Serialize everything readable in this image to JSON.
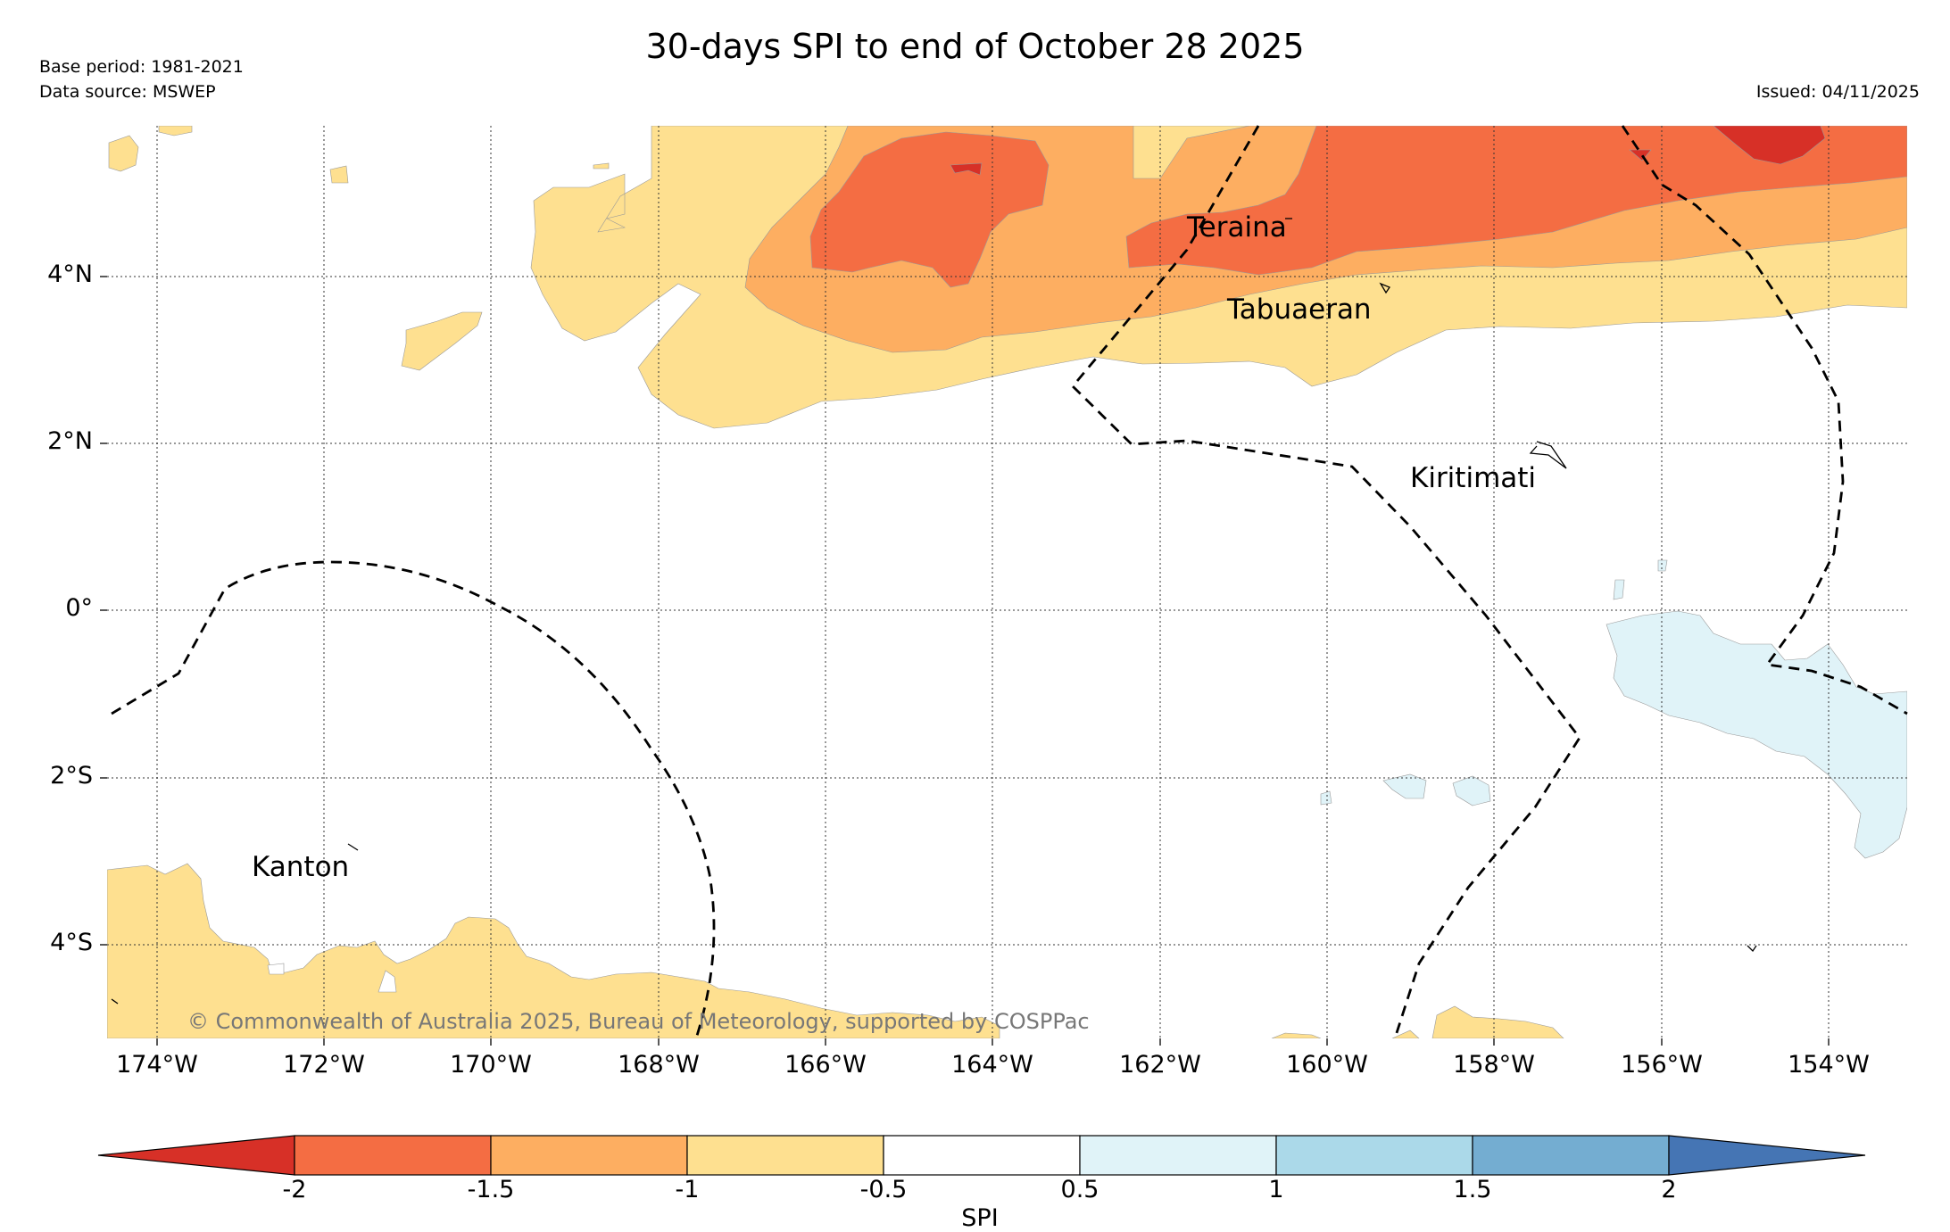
{
  "title": "30-days SPI to end of October 28 2025",
  "base_period": "Base period: 1981-2021",
  "data_source": "Data source: MSWEP",
  "issued": "Issued: 04/11/2025",
  "copyright": "© Commonwealth of Australia 2025, Bureau of Meteorology, supported by COSPPac",
  "places": {
    "teraina": "Teraina",
    "tabuaeran": "Tabuaeran",
    "kiritimati": "Kiritimati",
    "kanton": "Kanton"
  },
  "lat_labels": [
    "4°N",
    "2°N",
    "0°",
    "2°S",
    "4°S"
  ],
  "lon_labels": [
    "174°W",
    "172°W",
    "170°W",
    "168°W",
    "166°W",
    "164°W",
    "162°W",
    "160°W",
    "158°W",
    "156°W",
    "154°W"
  ],
  "colorbar": {
    "title": "SPI",
    "ticks": [
      "-2",
      "-1.5",
      "-1",
      "-0.5",
      "0.5",
      "1",
      "1.5",
      "2"
    ],
    "colors": {
      "below_min": "#d73027",
      "m2_m15": "#f46d43",
      "m15_m1": "#fdae61",
      "m1_m05": "#fee090",
      "m05_05": "#ffffff",
      "p05_1": "#e0f3f8",
      "p1_15": "#abd9e9",
      "p15_2": "#74add1",
      "above_max": "#4575b4"
    }
  },
  "chart_data": {
    "type": "map",
    "variable": "SPI",
    "period": "30-days to end of October 28 2025",
    "lon_range": [
      -174.6,
      -153.0
    ],
    "lat_range": [
      -5.1,
      5.8
    ],
    "levels": [
      -2,
      -1.5,
      -1,
      -0.5,
      0.5,
      1,
      1.5,
      2
    ],
    "regions": [
      {
        "name": "Line Islands north (Teraina / Tabuaeran)",
        "spi_class": "-2 to -0.5, locally below -2"
      },
      {
        "name": "East of Kiritimati, near equator",
        "spi_class": "0.5 to 1"
      },
      {
        "name": "Phoenix Islands south (near Kanton)",
        "spi_class": "-1 to -0.5"
      }
    ]
  }
}
